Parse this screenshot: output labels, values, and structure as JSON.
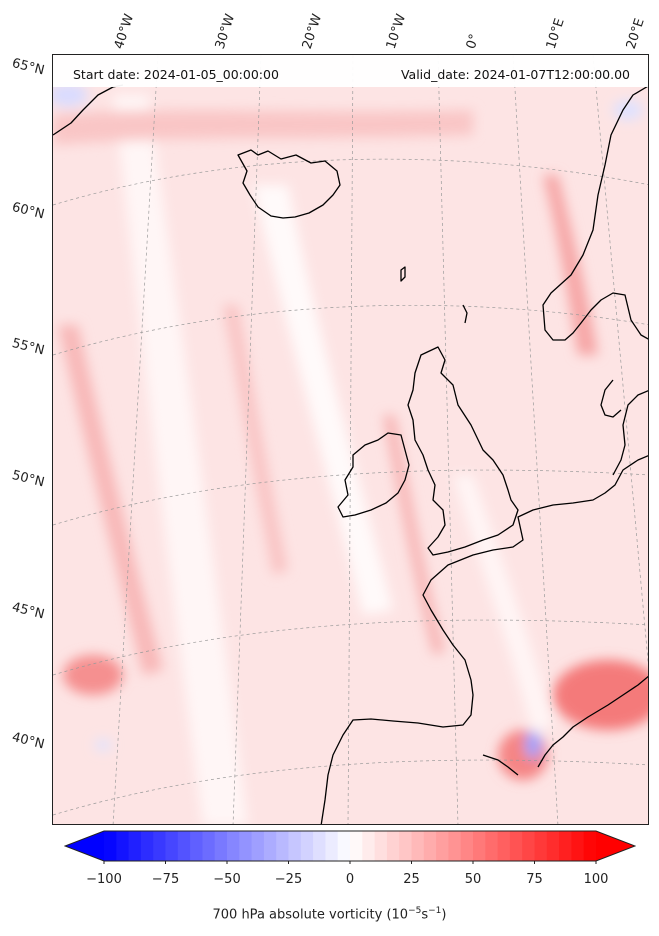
{
  "map": {
    "start_date_label": "Start date: 2024-01-05_00:00:00",
    "valid_date_label": "Valid_date: 2024-01-07T12:00:00.00",
    "longitude_labels": [
      "40°W",
      "30°W",
      "20°W",
      "10°W",
      "0°",
      "10°E",
      "20°E"
    ],
    "latitude_labels": [
      "65°N",
      "60°N",
      "55°N",
      "50°N",
      "45°N",
      "40°N"
    ],
    "colors": {
      "background_low": "#fde9e9",
      "positive_max": "#ff0000",
      "negative_max": "#0000ff",
      "neutral": "#ffffff",
      "coastline": "#000000",
      "gridline": "#9a9a9a"
    }
  },
  "colorbar": {
    "tick_labels": [
      "−100",
      "−75",
      "−50",
      "−25",
      "0",
      "25",
      "50",
      "75",
      "100"
    ],
    "tick_values": [
      -100,
      -75,
      -50,
      -25,
      0,
      25,
      50,
      75,
      100
    ],
    "range": [
      -100,
      100
    ],
    "title_prefix": "700 hPa absolute vorticity (10",
    "title_exp1": "−5",
    "title_mid": "s",
    "title_exp2": "−1",
    "title_suffix": ")"
  }
}
